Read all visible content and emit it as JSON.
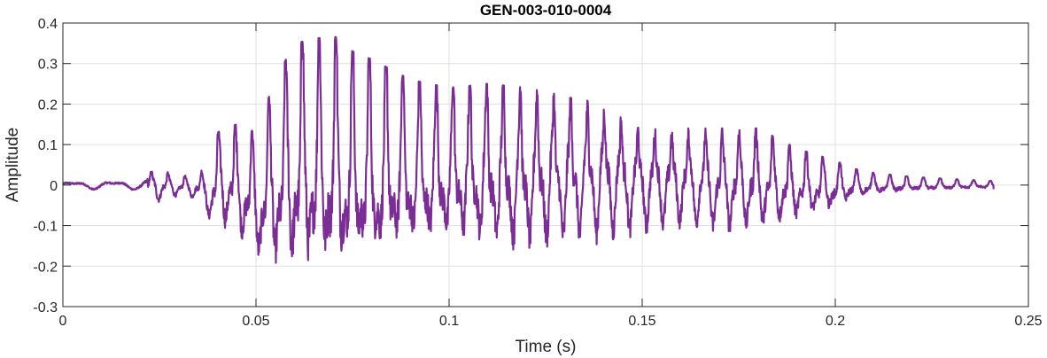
{
  "chart_data": {
    "type": "line",
    "title": "GEN-003-010-0004",
    "xlabel": "Time (s)",
    "ylabel": "Amplitude",
    "xlim": [
      0,
      0.25
    ],
    "ylim": [
      -0.3,
      0.4
    ],
    "xticks": [
      0,
      0.05,
      0.1,
      0.15,
      0.2,
      0.25
    ],
    "xtick_labels": [
      "0",
      "0.05",
      "0.1",
      "0.15",
      "0.2",
      "0.25"
    ],
    "yticks": [
      -0.3,
      -0.2,
      -0.1,
      0,
      0.1,
      0.2,
      0.3,
      0.4
    ],
    "ytick_labels": [
      "-0.3",
      "-0.2",
      "-0.1",
      "0",
      "0.1",
      "0.2",
      "0.3",
      "0.4"
    ],
    "grid": true,
    "series": [
      {
        "color": "#7B2D96",
        "envelope_x": [
          0,
          0.01,
          0.02,
          0.024,
          0.03,
          0.035,
          0.038,
          0.04,
          0.045,
          0.05,
          0.055,
          0.06,
          0.065,
          0.07,
          0.075,
          0.08,
          0.09,
          0.1,
          0.11,
          0.12,
          0.13,
          0.14,
          0.15,
          0.16,
          0.17,
          0.18,
          0.19,
          0.2,
          0.205,
          0.21,
          0.22,
          0.23,
          0.241
        ],
        "envelope_upper": [
          0.01,
          0.012,
          0.012,
          0.045,
          0.02,
          0.03,
          0.05,
          0.13,
          0.15,
          0.13,
          0.26,
          0.35,
          0.36,
          0.37,
          0.33,
          0.31,
          0.26,
          0.24,
          0.25,
          0.24,
          0.22,
          0.2,
          0.15,
          0.14,
          0.14,
          0.14,
          0.09,
          0.06,
          0.04,
          0.03,
          0.02,
          0.015,
          0.01
        ],
        "envelope_lower": [
          -0.01,
          -0.012,
          -0.012,
          -0.05,
          -0.03,
          -0.04,
          -0.1,
          -0.12,
          -0.14,
          -0.22,
          -0.26,
          -0.28,
          -0.28,
          -0.28,
          -0.26,
          -0.25,
          -0.2,
          -0.18,
          -0.19,
          -0.2,
          -0.18,
          -0.16,
          -0.14,
          -0.12,
          -0.14,
          -0.13,
          -0.1,
          -0.07,
          -0.04,
          -0.03,
          -0.02,
          -0.015,
          -0.01
        ],
        "end_x": 0.241,
        "end_value": -0.01
      }
    ]
  }
}
